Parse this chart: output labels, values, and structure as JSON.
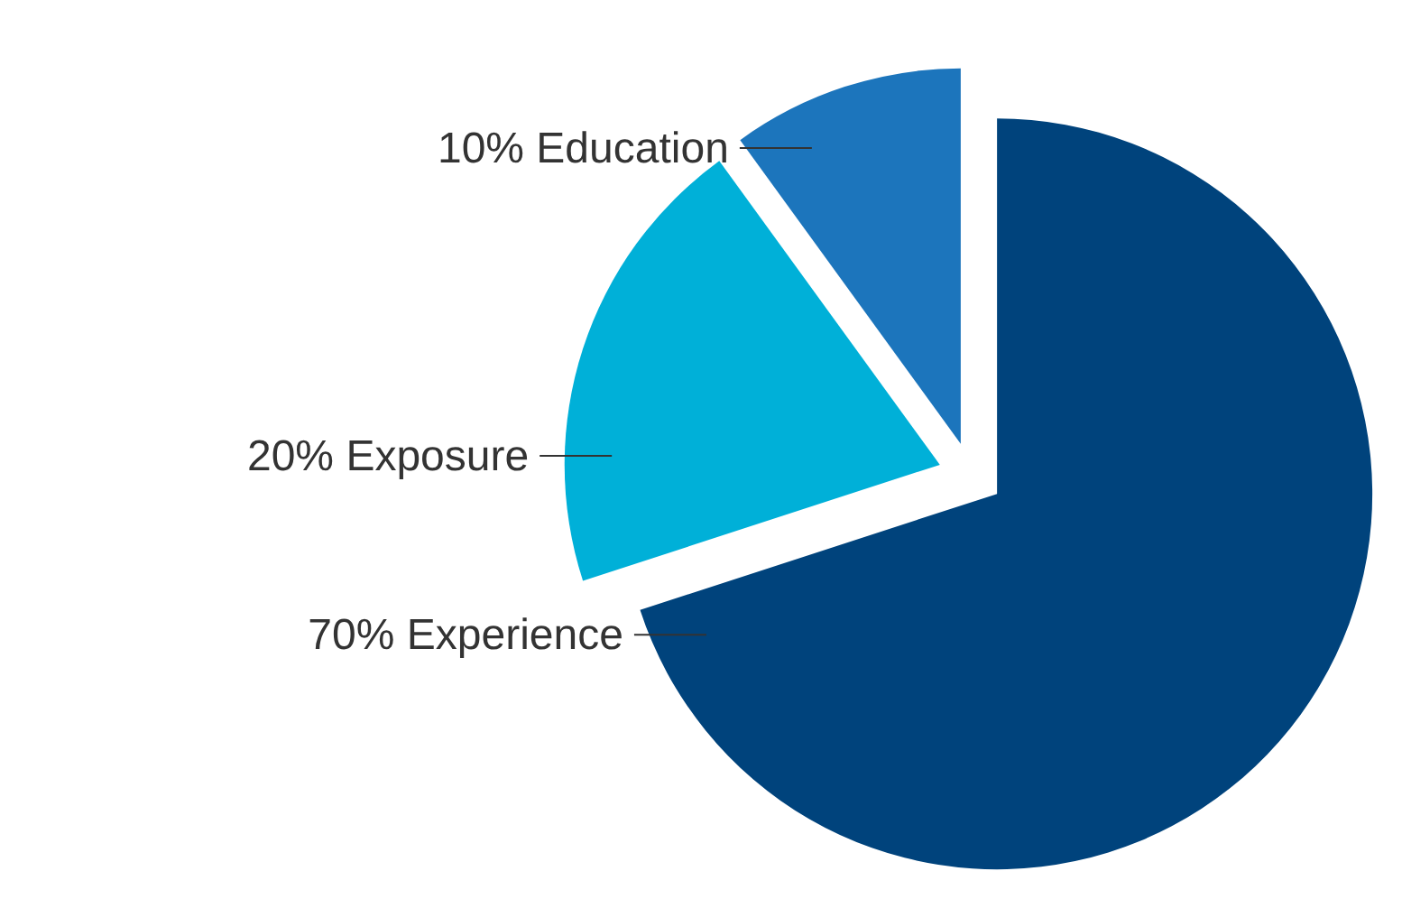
{
  "chart_data": {
    "type": "pie",
    "categories": [
      "Experience",
      "Exposure",
      "Education"
    ],
    "values": [
      70,
      20,
      10
    ],
    "value_labels": [
      "70%",
      "20%",
      "10%"
    ],
    "colors": [
      "#00437c",
      "#00b0d8",
      "#1c75bc"
    ]
  }
}
